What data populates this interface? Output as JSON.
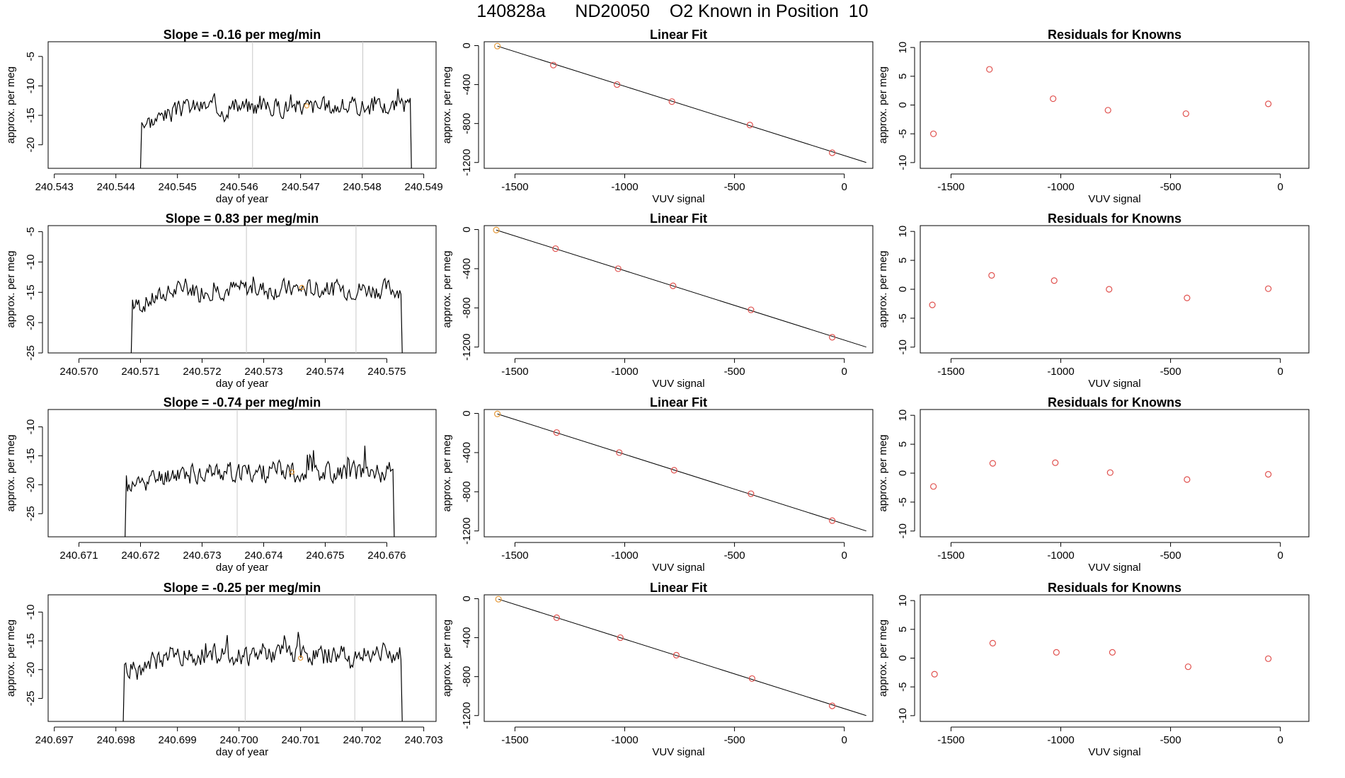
{
  "page": {
    "title": "140828a      ND20050    O2 Known in Position  10"
  },
  "colors": {
    "series_line": "#000000",
    "fit_line": "#000000",
    "marker_red": "#e0514e",
    "marker_orange": "#e69a3a",
    "guide_line": "#c8c8c8"
  },
  "chart_data": [
    {
      "type": "line",
      "panel": "time-series",
      "row": 0,
      "title": "Slope =  -0.16  per meg/min",
      "xlabel": "day of year",
      "ylabel": "approx. per meg",
      "xlim": [
        240.5429,
        240.5492
      ],
      "ylim": [
        -24,
        -2.5
      ],
      "xticks": [
        "240.543",
        "240.544",
        "240.545",
        "240.546",
        "240.547",
        "240.548",
        "240.549"
      ],
      "xtick_values": [
        240.543,
        240.544,
        240.545,
        240.546,
        240.547,
        240.548,
        240.549
      ],
      "yticks": [
        "-5",
        "-10",
        "-15",
        "-20"
      ],
      "ytick_values": [
        -5,
        -10,
        -15,
        -20
      ],
      "vlines": [
        240.54622,
        240.54801
      ],
      "marker": {
        "x": 240.5471,
        "y": -13.4
      },
      "series": {
        "start": 240.5444,
        "end": 240.5488,
        "mean": -13.5,
        "spread": 2.2,
        "drop_start": -24,
        "drop_end": -24,
        "seed": 3
      }
    },
    {
      "type": "line",
      "panel": "time-series",
      "row": 1,
      "title": "Slope =  0.83  per meg/min",
      "xlabel": "day of year",
      "ylabel": "approx. per meg",
      "xlim": [
        240.5695,
        240.5758
      ],
      "ylim": [
        -25,
        -4
      ],
      "xticks": [
        "240.570",
        "240.571",
        "240.572",
        "240.573",
        "240.574",
        "240.575"
      ],
      "xtick_values": [
        240.57,
        240.571,
        240.572,
        240.573,
        240.574,
        240.575
      ],
      "yticks": [
        "-5",
        "-10",
        "-15",
        "-20",
        "-25"
      ],
      "ytick_values": [
        -5,
        -10,
        -15,
        -20,
        -25
      ],
      "vlines": [
        240.57272,
        240.5745
      ],
      "marker": {
        "x": 240.57362,
        "y": -14.2
      },
      "series": {
        "start": 240.57085,
        "end": 240.57525,
        "mean": -14.5,
        "spread": 2.2,
        "drop_start": -25,
        "drop_end": -25,
        "seed": 7
      }
    },
    {
      "type": "line",
      "panel": "time-series",
      "row": 2,
      "title": "Slope =  -0.74  per meg/min",
      "xlabel": "day of year",
      "ylabel": "approx. per meg",
      "xlim": [
        240.6705,
        240.6768
      ],
      "ylim": [
        -29,
        -7
      ],
      "xticks": [
        "240.671",
        "240.672",
        "240.673",
        "240.674",
        "240.675",
        "240.676"
      ],
      "xtick_values": [
        240.671,
        240.672,
        240.673,
        240.674,
        240.675,
        240.676
      ],
      "yticks": [
        "-10",
        "-15",
        "-20",
        "-25"
      ],
      "ytick_values": [
        -10,
        -15,
        -20,
        -25
      ],
      "vlines": [
        240.67357,
        240.67534
      ],
      "marker": {
        "x": 240.67446,
        "y": -17.8
      },
      "series": {
        "start": 240.67175,
        "end": 240.67612,
        "mean": -17.8,
        "spread": 2.5,
        "drop_start": -29,
        "drop_end": -29,
        "seed": 11
      }
    },
    {
      "type": "line",
      "panel": "time-series",
      "row": 3,
      "title": "Slope =  -0.25  per meg/min",
      "xlabel": "day of year",
      "ylabel": "approx. per meg",
      "xlim": [
        240.6969,
        240.7032
      ],
      "ylim": [
        -29,
        -7
      ],
      "xticks": [
        "240.697",
        "240.698",
        "240.699",
        "240.700",
        "240.701",
        "240.702",
        "240.703"
      ],
      "xtick_values": [
        240.697,
        240.698,
        240.699,
        240.7,
        240.701,
        240.702,
        240.703
      ],
      "yticks": [
        "-10",
        "-15",
        "-20",
        "-25"
      ],
      "ytick_values": [
        -10,
        -15,
        -20,
        -25
      ],
      "vlines": [
        240.7001,
        240.70188
      ],
      "marker": {
        "x": 240.701,
        "y": -18.0
      },
      "series": {
        "start": 240.69812,
        "end": 240.70265,
        "mean": -17.5,
        "spread": 2.5,
        "drop_start": -29,
        "drop_end": -29,
        "seed": 19
      }
    },
    {
      "type": "scatter",
      "panel": "linear-fit",
      "row": 0,
      "title": "Linear Fit",
      "xlabel": "VUV signal",
      "ylabel": "approx. per meg",
      "xlim": [
        -1640,
        130
      ],
      "ylim": [
        -1260,
        40
      ],
      "xticks": [
        "-1500",
        "-1000",
        "-500",
        "0"
      ],
      "xtick_values": [
        -1500,
        -1000,
        -500,
        0
      ],
      "yticks": [
        "0",
        "-400",
        "-800",
        "-1200"
      ],
      "ytick_values": [
        0,
        -400,
        -800,
        -1200
      ],
      "x": [
        -1580,
        -1325,
        -1035,
        -785,
        -430,
        -55
      ],
      "y": [
        -5,
        -200,
        -400,
        -575,
        -815,
        -1100
      ],
      "fit": {
        "x": [
          -1580,
          100
        ],
        "y": [
          -5,
          -1200
        ]
      }
    },
    {
      "type": "scatter",
      "panel": "linear-fit",
      "row": 1,
      "title": "Linear Fit",
      "xlabel": "VUV signal",
      "ylabel": "approx. per meg",
      "xlim": [
        -1640,
        130
      ],
      "ylim": [
        -1260,
        40
      ],
      "xticks": [
        "-1500",
        "-1000",
        "-500",
        "0"
      ],
      "xtick_values": [
        -1500,
        -1000,
        -500,
        0
      ],
      "yticks": [
        "0",
        "-400",
        "-800",
        "-1200"
      ],
      "ytick_values": [
        0,
        -400,
        -800,
        -1200
      ],
      "x": [
        -1585,
        -1315,
        -1030,
        -780,
        -425,
        -55
      ],
      "y": [
        -5,
        -195,
        -400,
        -575,
        -820,
        -1100
      ],
      "fit": {
        "x": [
          -1585,
          100
        ],
        "y": [
          -5,
          -1200
        ]
      }
    },
    {
      "type": "scatter",
      "panel": "linear-fit",
      "row": 2,
      "title": "Linear Fit",
      "xlabel": "VUV signal",
      "ylabel": "approx. per meg",
      "xlim": [
        -1640,
        130
      ],
      "ylim": [
        -1260,
        40
      ],
      "xticks": [
        "-1500",
        "-1000",
        "-500",
        "0"
      ],
      "xtick_values": [
        -1500,
        -1000,
        -500,
        0
      ],
      "yticks": [
        "0",
        "-400",
        "-800",
        "-1200"
      ],
      "ytick_values": [
        0,
        -400,
        -800,
        -1200
      ],
      "x": [
        -1580,
        -1310,
        -1025,
        -775,
        -425,
        -55
      ],
      "y": [
        -5,
        -195,
        -400,
        -580,
        -820,
        -1095
      ],
      "fit": {
        "x": [
          -1580,
          100
        ],
        "y": [
          -5,
          -1200
        ]
      }
    },
    {
      "type": "scatter",
      "panel": "linear-fit",
      "row": 3,
      "title": "Linear Fit",
      "xlabel": "VUV signal",
      "ylabel": "approx. per meg",
      "xlim": [
        -1640,
        130
      ],
      "ylim": [
        -1260,
        40
      ],
      "xticks": [
        "-1500",
        "-1000",
        "-500",
        "0"
      ],
      "xtick_values": [
        -1500,
        -1000,
        -500,
        0
      ],
      "yticks": [
        "0",
        "-400",
        "-800",
        "-1200"
      ],
      "ytick_values": [
        0,
        -400,
        -800,
        -1200
      ],
      "x": [
        -1575,
        -1310,
        -1020,
        -765,
        -420,
        -55
      ],
      "y": [
        -5,
        -195,
        -400,
        -580,
        -820,
        -1100
      ],
      "fit": {
        "x": [
          -1575,
          100
        ],
        "y": [
          -5,
          -1200
        ]
      }
    },
    {
      "type": "scatter",
      "panel": "residuals",
      "row": 0,
      "title": "Residuals for Knowns",
      "xlabel": "VUV signal",
      "ylabel": "approx. per meg",
      "xlim": [
        -1640,
        130
      ],
      "ylim": [
        -11,
        11
      ],
      "xticks": [
        "-1500",
        "-1000",
        "-500",
        "0"
      ],
      "xtick_values": [
        -1500,
        -1000,
        -500,
        0
      ],
      "yticks": [
        "10",
        "5",
        "0",
        "-5",
        "-10"
      ],
      "ytick_values": [
        10,
        5,
        0,
        -5,
        -10
      ],
      "x": [
        -1580,
        -1325,
        -1035,
        -785,
        -430,
        -55
      ],
      "y": [
        -5.0,
        6.2,
        1.1,
        -0.9,
        -1.5,
        0.2
      ]
    },
    {
      "type": "scatter",
      "panel": "residuals",
      "row": 1,
      "title": "Residuals for Knowns",
      "xlabel": "VUV signal",
      "ylabel": "approx. per meg",
      "xlim": [
        -1640,
        130
      ],
      "ylim": [
        -11,
        11
      ],
      "xticks": [
        "-1500",
        "-1000",
        "-500",
        "0"
      ],
      "xtick_values": [
        -1500,
        -1000,
        -500,
        0
      ],
      "yticks": [
        "10",
        "5",
        "0",
        "-5",
        "-10"
      ],
      "ytick_values": [
        10,
        5,
        0,
        -5,
        -10
      ],
      "x": [
        -1585,
        -1315,
        -1030,
        -780,
        -425,
        -55
      ],
      "y": [
        -2.7,
        2.4,
        1.5,
        0.0,
        -1.5,
        0.1
      ]
    },
    {
      "type": "scatter",
      "panel": "residuals",
      "row": 2,
      "title": "Residuals for Knowns",
      "xlabel": "VUV signal",
      "ylabel": "approx. per meg",
      "xlim": [
        -1640,
        130
      ],
      "ylim": [
        -11,
        11
      ],
      "xticks": [
        "-1500",
        "-1000",
        "-500",
        "0"
      ],
      "xtick_values": [
        -1500,
        -1000,
        -500,
        0
      ],
      "yticks": [
        "10",
        "5",
        "0",
        "-5",
        "-10"
      ],
      "ytick_values": [
        10,
        5,
        0,
        -5,
        -10
      ],
      "x": [
        -1580,
        -1310,
        -1025,
        -775,
        -425,
        -55
      ],
      "y": [
        -2.3,
        1.7,
        1.8,
        0.1,
        -1.1,
        -0.2
      ]
    },
    {
      "type": "scatter",
      "panel": "residuals",
      "row": 3,
      "title": "Residuals for Knowns",
      "xlabel": "VUV signal",
      "ylabel": "approx. per meg",
      "xlim": [
        -1640,
        130
      ],
      "ylim": [
        -11,
        11
      ],
      "xticks": [
        "-1500",
        "-1000",
        "-500",
        "0"
      ],
      "xtick_values": [
        -1500,
        -1000,
        -500,
        0
      ],
      "yticks": [
        "10",
        "5",
        "0",
        "-5",
        "-10"
      ],
      "ytick_values": [
        10,
        5,
        0,
        -5,
        -10
      ],
      "x": [
        -1575,
        -1310,
        -1020,
        -765,
        -420,
        -55
      ],
      "y": [
        -2.8,
        2.6,
        1.0,
        1.0,
        -1.5,
        -0.1
      ]
    }
  ]
}
